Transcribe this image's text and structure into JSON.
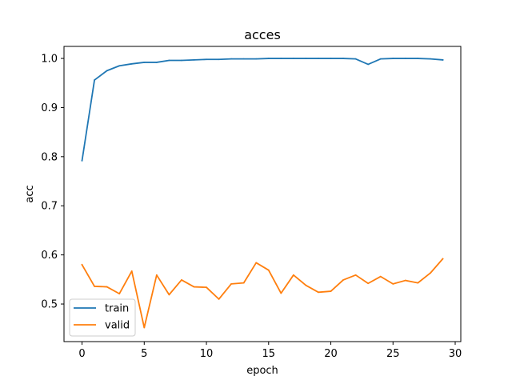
{
  "chart_data": {
    "type": "line",
    "title": "acces",
    "xlabel": "epoch",
    "ylabel": "acc",
    "xlim": [
      -1.45,
      30.45
    ],
    "ylim": [
      0.4235,
      1.0245
    ],
    "xticks": [
      0,
      5,
      10,
      15,
      20,
      25,
      30
    ],
    "xtick_labels": [
      "0",
      "5",
      "10",
      "15",
      "20",
      "25",
      "30"
    ],
    "yticks": [
      0.5,
      0.6,
      0.7,
      0.8,
      0.9,
      1.0
    ],
    "ytick_labels": [
      "0.5",
      "0.6",
      "0.7",
      "0.8",
      "0.9",
      "1.0"
    ],
    "grid": false,
    "legend_position": "lower-left",
    "x": [
      0,
      1,
      2,
      3,
      4,
      5,
      6,
      7,
      8,
      9,
      10,
      11,
      12,
      13,
      14,
      15,
      16,
      17,
      18,
      19,
      20,
      21,
      22,
      23,
      24,
      25,
      26,
      27,
      28,
      29
    ],
    "series": [
      {
        "name": "train",
        "color": "#1f77b4",
        "values": [
          0.792,
          0.956,
          0.975,
          0.985,
          0.989,
          0.992,
          0.992,
          0.996,
          0.996,
          0.997,
          0.998,
          0.998,
          0.999,
          0.999,
          0.999,
          1.0,
          1.0,
          1.0,
          1.0,
          1.0,
          1.0,
          1.0,
          0.999,
          0.988,
          0.999,
          1.0,
          1.0,
          1.0,
          0.999,
          0.997
        ]
      },
      {
        "name": "valid",
        "color": "#ff7f0e",
        "values": [
          0.58,
          0.536,
          0.535,
          0.521,
          0.567,
          0.452,
          0.559,
          0.519,
          0.549,
          0.535,
          0.534,
          0.51,
          0.541,
          0.543,
          0.584,
          0.569,
          0.522,
          0.559,
          0.538,
          0.524,
          0.526,
          0.549,
          0.559,
          0.542,
          0.556,
          0.541,
          0.548,
          0.543,
          0.563,
          0.592
        ]
      }
    ]
  }
}
